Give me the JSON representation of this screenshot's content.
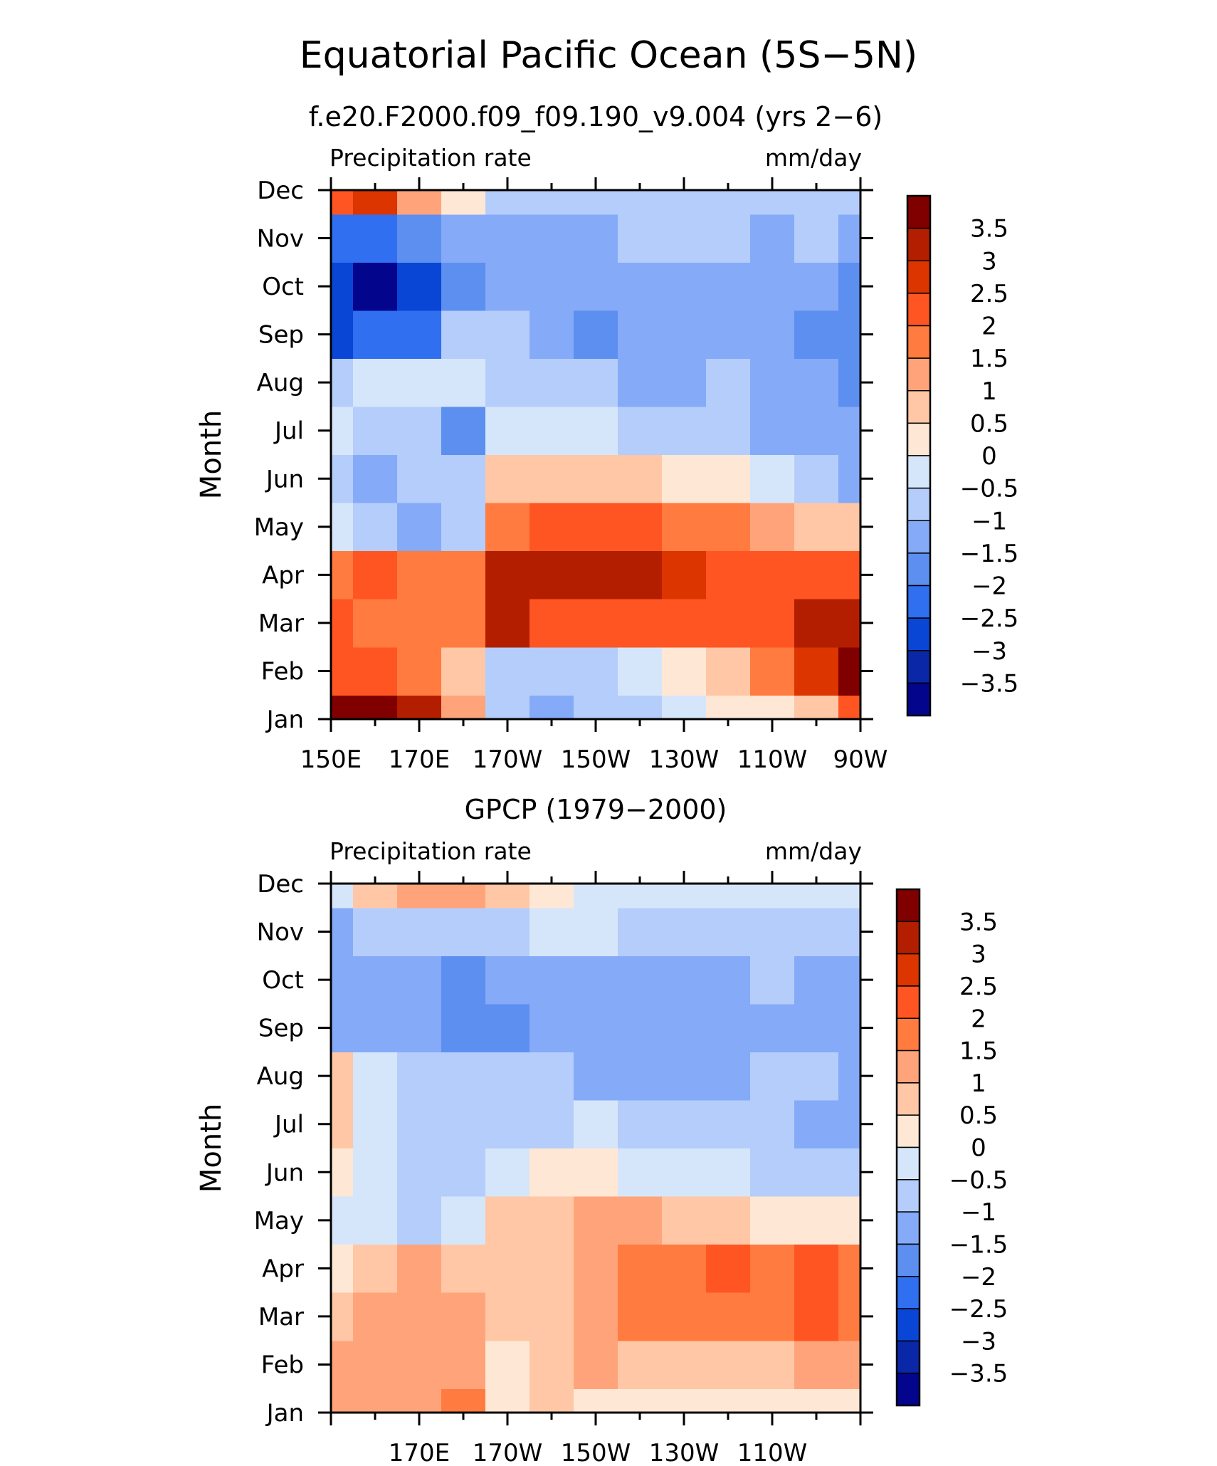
{
  "figure": {
    "title": "Equatorial Pacific Ocean (5S−5N)"
  },
  "colorbar": {
    "levels": [
      "3.5",
      "3",
      "2.5",
      "2",
      "1.5",
      "1",
      "0.5",
      "0",
      "−0.5",
      "−1",
      "−1.5",
      "−2",
      "−2.5",
      "−3",
      "−3.5"
    ],
    "colors": [
      "#800000",
      "#b31e00",
      "#dc3500",
      "#ff5522",
      "#ff7b40",
      "#ffa47a",
      "#ffc7a6",
      "#ffe7d5",
      "#d6e6fa",
      "#b4cdfa",
      "#85aaf8",
      "#5c8ff0",
      "#2f6ff0",
      "#0a46d6",
      "#0a27a8",
      "#03058c"
    ]
  },
  "chart_data": [
    {
      "type": "heatmap",
      "id": "model",
      "subtitle": "f.e20.F2000.f09_f09.190_v9.004 (yrs 2−6)",
      "left_label": "Precipitation rate",
      "right_label": "mm/day",
      "ylabel": "Month",
      "xlim": [
        150,
        270
      ],
      "x_units": "degrees east",
      "x_ticks": [
        {
          "value": 150,
          "label": "150E"
        },
        {
          "value": 170,
          "label": "170E"
        },
        {
          "value": 190,
          "label": "170W"
        },
        {
          "value": 210,
          "label": "150W"
        },
        {
          "value": 230,
          "label": "130W"
        },
        {
          "value": 250,
          "label": "110W"
        },
        {
          "value": 270,
          "label": "90W"
        }
      ],
      "y_ticks": [
        "Jan",
        "Feb",
        "Mar",
        "Apr",
        "May",
        "Jun",
        "Jul",
        "Aug",
        "Sep",
        "Oct",
        "Nov",
        "Dec"
      ],
      "x": [
        150,
        160,
        170,
        180,
        190,
        200,
        210,
        220,
        230,
        240,
        250,
        260,
        270
      ],
      "months": [
        "Jan",
        "Feb",
        "Mar",
        "Apr",
        "May",
        "Jun",
        "Jul",
        "Aug",
        "Sep",
        "Oct",
        "Nov",
        "Dec"
      ],
      "values": [
        [
          3.5,
          3.7,
          3.2,
          1.3,
          -0.6,
          -1.1,
          -1.0,
          -0.6,
          -0.2,
          0.0,
          0.3,
          0.6,
          2.0
        ],
        [
          2.4,
          2.2,
          1.8,
          0.6,
          -0.8,
          -1.0,
          -0.8,
          -0.3,
          0.3,
          0.8,
          1.5,
          2.6,
          3.7
        ],
        [
          2.0,
          1.8,
          1.5,
          1.8,
          3.0,
          2.2,
          2.4,
          2.2,
          2.0,
          2.0,
          2.3,
          3.0,
          3.3
        ],
        [
          1.6,
          2.0,
          1.6,
          1.8,
          3.0,
          3.3,
          3.2,
          3.0,
          2.6,
          2.3,
          2.3,
          2.2,
          2.2
        ],
        [
          -0.3,
          -1.0,
          -1.1,
          -0.9,
          1.6,
          2.3,
          2.3,
          2.1,
          1.8,
          1.5,
          1.2,
          0.8,
          0.6
        ],
        [
          -0.8,
          -1.5,
          -0.9,
          -0.7,
          0.6,
          0.9,
          0.8,
          0.5,
          0.2,
          0.0,
          -0.5,
          -1.0,
          -1.5
        ],
        [
          -0.4,
          -0.7,
          -0.9,
          -1.6,
          -0.4,
          -0.3,
          -0.4,
          -0.6,
          -0.8,
          -1.0,
          -1.1,
          -1.2,
          -1.5
        ],
        [
          -0.7,
          -0.4,
          -0.2,
          -0.5,
          -0.9,
          -0.6,
          -1.0,
          -1.4,
          -1.3,
          -1.0,
          -1.3,
          -1.5,
          -2.0
        ],
        [
          -2.6,
          -2.3,
          -2.2,
          -1.0,
          -0.9,
          -1.2,
          -1.6,
          -1.3,
          -1.5,
          -1.3,
          -1.5,
          -1.6,
          -2.0
        ],
        [
          -3.0,
          -3.5,
          -2.8,
          -1.8,
          -1.3,
          -1.3,
          -1.3,
          -1.2,
          -1.3,
          -1.3,
          -1.3,
          -1.4,
          -2.0
        ],
        [
          -2.5,
          -2.4,
          -1.8,
          -1.1,
          -1.2,
          -1.2,
          -1.1,
          -1.0,
          -0.9,
          -0.8,
          -1.1,
          -1.0,
          -1.3
        ],
        [
          2.0,
          2.5,
          1.2,
          0.3,
          -0.6,
          -0.7,
          -0.8,
          -0.9,
          -1.0,
          -1.0,
          -1.0,
          -1.0,
          -1.0
        ]
      ]
    },
    {
      "type": "heatmap",
      "id": "obs",
      "subtitle": "GPCP (1979−2000)",
      "left_label": "Precipitation rate",
      "right_label": "mm/day",
      "ylabel": "Month",
      "xlim": [
        150,
        270
      ],
      "x_units": "degrees east",
      "x_ticks": [
        {
          "value": 170,
          "label": "170E"
        },
        {
          "value": 190,
          "label": "170W"
        },
        {
          "value": 210,
          "label": "150W"
        },
        {
          "value": 230,
          "label": "130W"
        },
        {
          "value": 250,
          "label": "110W"
        }
      ],
      "y_ticks": [
        "Jan",
        "Feb",
        "Mar",
        "Apr",
        "May",
        "Jun",
        "Jul",
        "Aug",
        "Sep",
        "Oct",
        "Nov",
        "Dec"
      ],
      "x": [
        150,
        160,
        170,
        180,
        190,
        200,
        210,
        220,
        230,
        240,
        250,
        260,
        270
      ],
      "months": [
        "Jan",
        "Feb",
        "Mar",
        "Apr",
        "May",
        "Jun",
        "Jul",
        "Aug",
        "Sep",
        "Oct",
        "Nov",
        "Dec"
      ],
      "values": [
        [
          1.0,
          1.1,
          1.4,
          1.7,
          0.4,
          0.5,
          0.3,
          0.2,
          0.1,
          0.1,
          0.1,
          0.1,
          0.3
        ],
        [
          1.4,
          1.1,
          1.1,
          1.3,
          0.3,
          0.6,
          1.1,
          0.9,
          0.7,
          0.7,
          0.9,
          1.2,
          1.4
        ],
        [
          0.7,
          1.2,
          1.1,
          1.1,
          0.5,
          0.6,
          1.2,
          1.6,
          1.8,
          1.8,
          1.6,
          2.0,
          1.7
        ],
        [
          0.3,
          0.6,
          1.1,
          0.7,
          0.7,
          0.7,
          1.4,
          1.6,
          1.9,
          2.0,
          1.6,
          2.0,
          1.8
        ],
        [
          -0.3,
          -0.3,
          -0.6,
          -0.4,
          0.7,
          0.9,
          1.0,
          1.0,
          0.8,
          0.6,
          0.4,
          0.2,
          0.1
        ],
        [
          0.4,
          -0.5,
          -0.7,
          -0.7,
          -0.1,
          0.3,
          0.1,
          -0.1,
          -0.3,
          -0.5,
          -0.7,
          -0.8,
          -0.8
        ],
        [
          0.5,
          -0.2,
          -0.7,
          -0.9,
          -0.8,
          -0.6,
          -0.5,
          -0.8,
          -0.9,
          -0.9,
          -1.0,
          -1.2,
          -1.3
        ],
        [
          0.5,
          -0.3,
          -0.7,
          -0.8,
          -0.9,
          -0.9,
          -1.2,
          -1.4,
          -1.3,
          -1.3,
          -1.0,
          -1.0,
          -1.3
        ],
        [
          -1.5,
          -1.4,
          -1.4,
          -2.0,
          -1.6,
          -1.3,
          -1.4,
          -1.3,
          -1.4,
          -1.4,
          -1.3,
          -1.1,
          -1.4
        ],
        [
          -1.3,
          -1.3,
          -1.4,
          -1.8,
          -1.5,
          -1.1,
          -1.3,
          -1.4,
          -1.3,
          -1.2,
          -0.9,
          -1.1,
          -1.3
        ],
        [
          -1.2,
          -1.0,
          -0.9,
          -0.8,
          -0.6,
          -0.5,
          -0.5,
          -0.6,
          -0.6,
          -0.6,
          -0.6,
          -0.7,
          -0.7
        ],
        [
          -0.4,
          0.6,
          1.2,
          1.0,
          0.5,
          0.1,
          -0.2,
          -0.3,
          -0.3,
          -0.3,
          -0.3,
          -0.3,
          -0.3
        ]
      ]
    }
  ]
}
